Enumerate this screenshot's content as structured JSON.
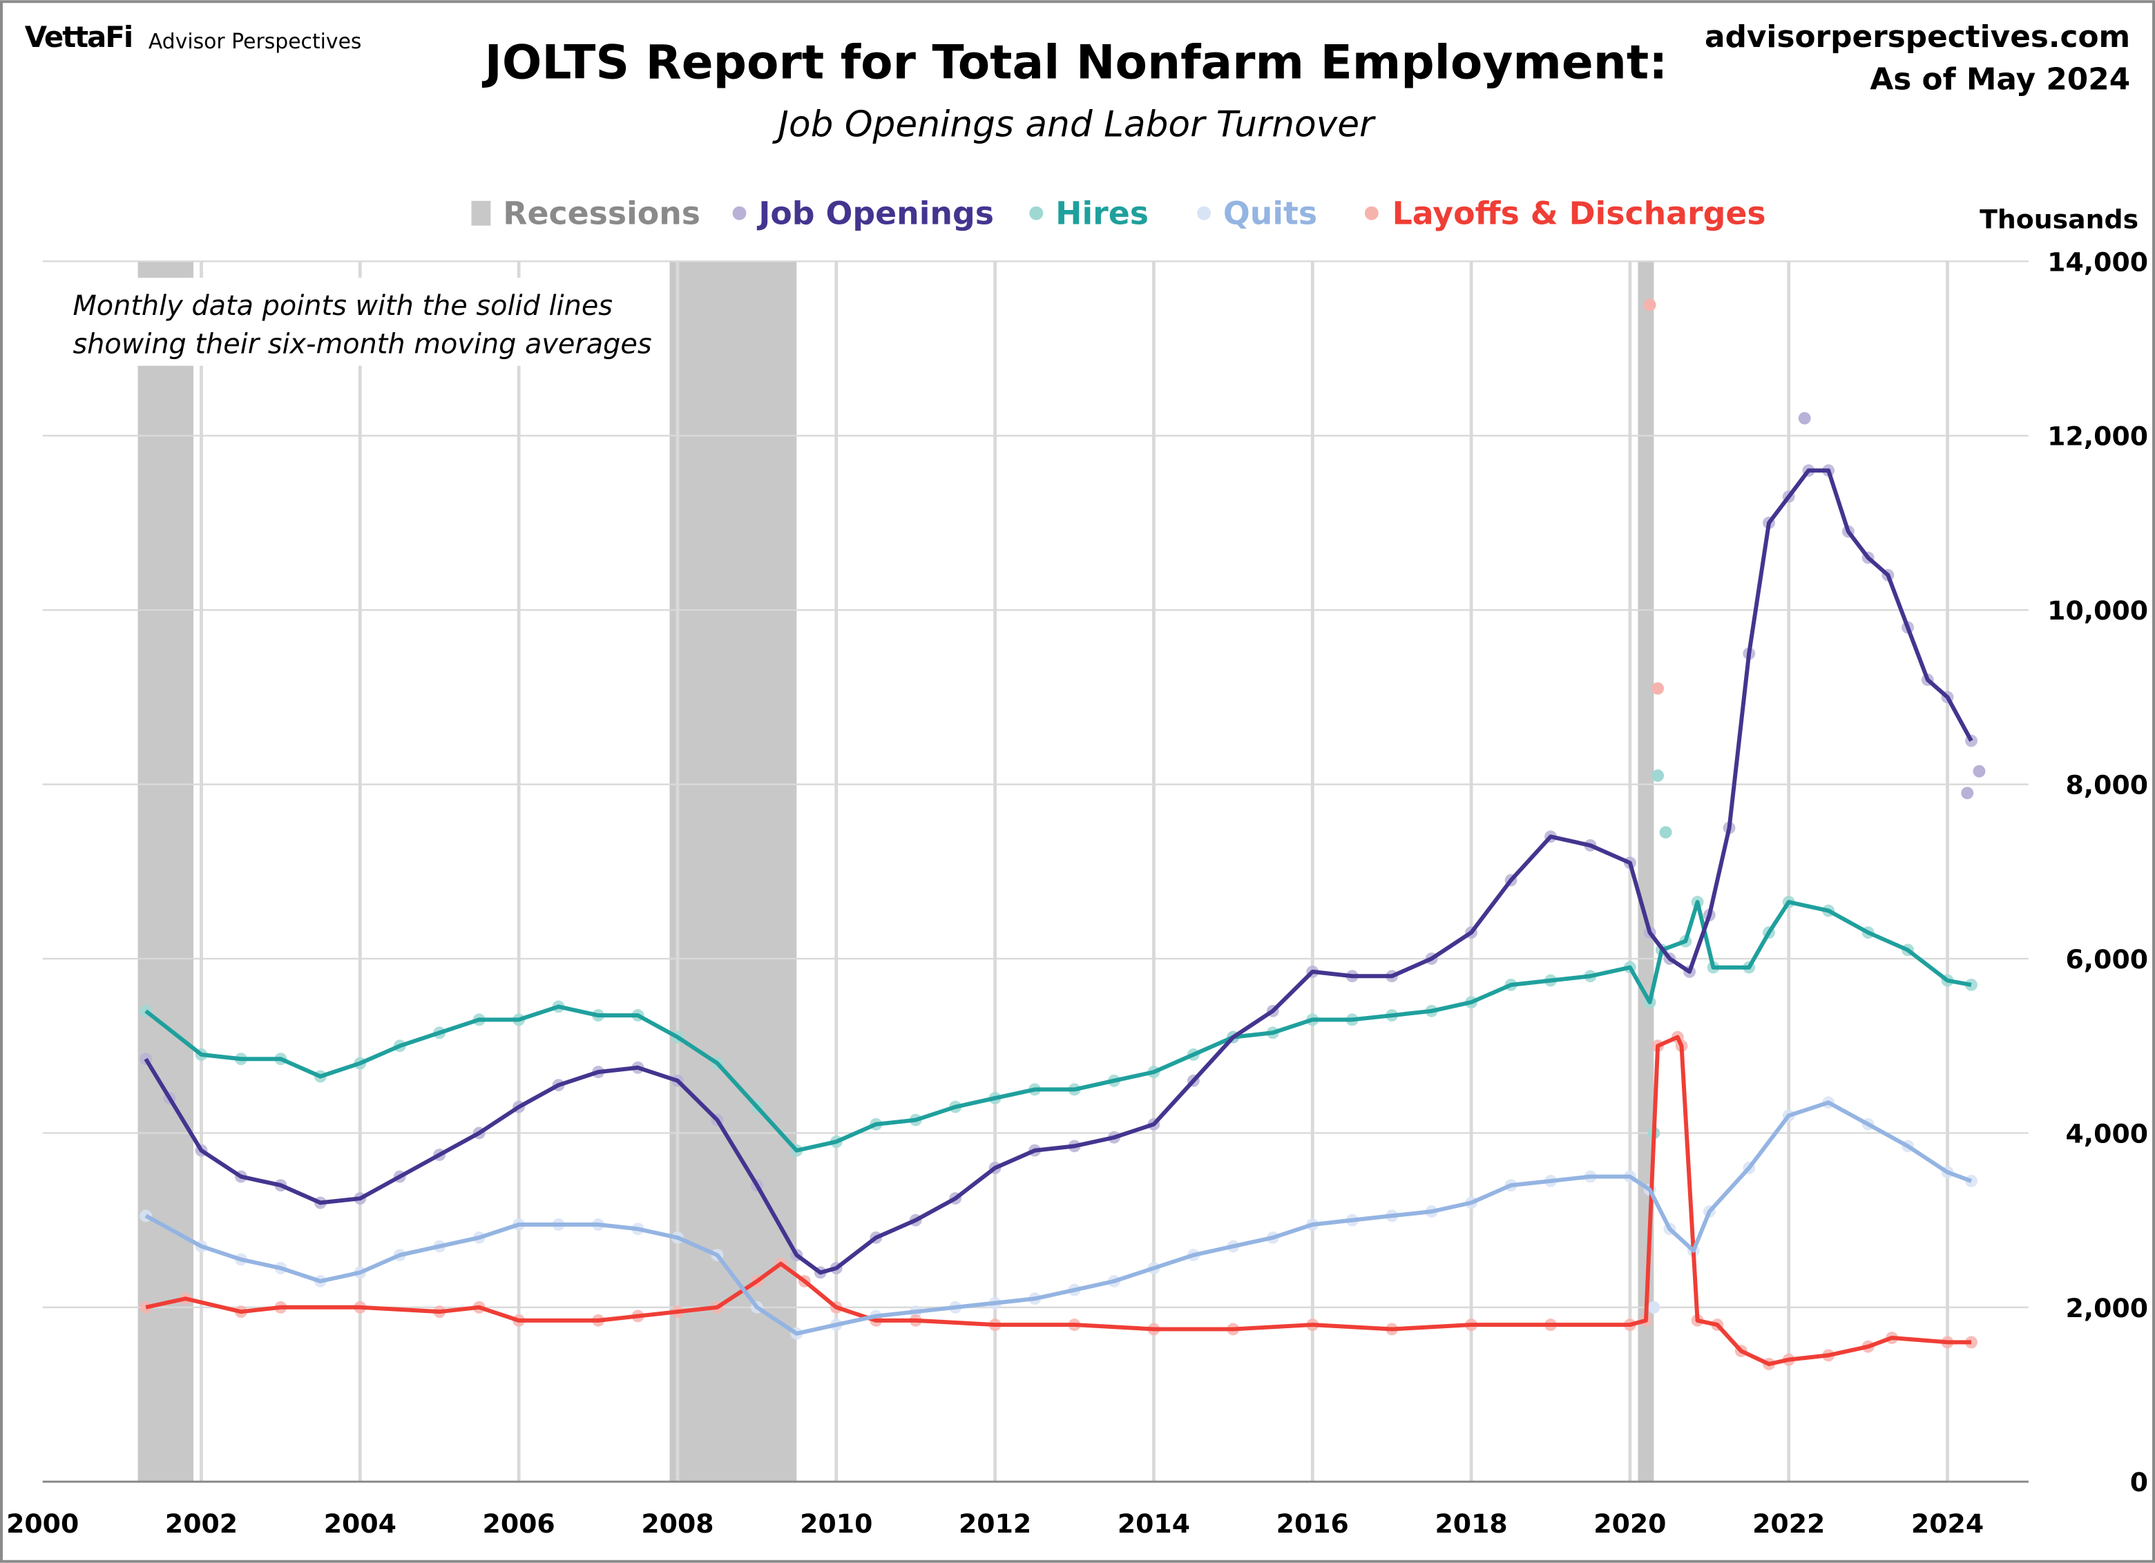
{
  "header": {
    "brand": "VettaFi",
    "brand_sub": "Advisor Perspectives",
    "site": "advisorperspectives.com",
    "as_of": "As of May 2024"
  },
  "chart_data": {
    "type": "line",
    "title": "JOLTS Report for Total Nonfarm Employment:",
    "subtitle": "Job Openings and Labor Turnover",
    "annotation": [
      "Monthly data points with the solid lines",
      "showing their six-month moving averages"
    ],
    "ylabel": "Thousands",
    "xlim": [
      2000,
      2025.1
    ],
    "ylim": [
      0,
      14000
    ],
    "x_ticks": [
      "2000",
      "2002",
      "2004",
      "2006",
      "2008",
      "2010",
      "2012",
      "2014",
      "2016",
      "2018",
      "2020",
      "2022",
      "2024"
    ],
    "y_ticks": [
      "0",
      "2,000",
      "4,000",
      "6,000",
      "8,000",
      "10,000",
      "12,000",
      "14,000"
    ],
    "grid": true,
    "legend_position": "top",
    "recessions": {
      "name": "Recessions",
      "color": "#c8c8c8",
      "periods": [
        [
          2001.2,
          2001.9
        ],
        [
          2007.9,
          2009.5
        ],
        [
          2020.1,
          2020.3
        ]
      ]
    },
    "series": [
      {
        "name": "Job Openings",
        "color": "#43358f",
        "dot_color": "#b9b1d6",
        "x": [
          2001.3,
          2001.6,
          2002.0,
          2002.5,
          2003.0,
          2003.5,
          2004.0,
          2004.5,
          2005.0,
          2005.5,
          2006.0,
          2006.5,
          2007.0,
          2007.5,
          2008.0,
          2008.5,
          2009.0,
          2009.5,
          2009.8,
          2010.0,
          2010.5,
          2011.0,
          2011.5,
          2012.0,
          2012.5,
          2013.0,
          2013.5,
          2014.0,
          2014.5,
          2015.0,
          2015.5,
          2016.0,
          2016.5,
          2017.0,
          2017.5,
          2018.0,
          2018.5,
          2019.0,
          2019.5,
          2020.0,
          2020.25,
          2020.5,
          2020.75,
          2021.0,
          2021.25,
          2021.5,
          2021.75,
          2022.0,
          2022.25,
          2022.5,
          2022.75,
          2023.0,
          2023.25,
          2023.5,
          2023.75,
          2024.0,
          2024.3
        ],
        "y": [
          4850,
          4400,
          3800,
          3500,
          3400,
          3200,
          3250,
          3500,
          3750,
          4000,
          4300,
          4550,
          4700,
          4750,
          4600,
          4150,
          3400,
          2600,
          2400,
          2450,
          2800,
          3000,
          3250,
          3600,
          3800,
          3850,
          3950,
          4100,
          4600,
          5100,
          5400,
          5850,
          5800,
          5800,
          6000,
          6300,
          6900,
          7400,
          7300,
          7100,
          6300,
          6000,
          5850,
          6500,
          7500,
          9500,
          11000,
          11300,
          11600,
          11600,
          10900,
          10600,
          10400,
          9800,
          9200,
          9000,
          8500
        ],
        "notable_points": [
          [
            2022.2,
            12200
          ],
          [
            2024.25,
            7900
          ],
          [
            2024.4,
            8150
          ]
        ]
      },
      {
        "name": "Hires",
        "color": "#1fa09d",
        "dot_color": "#9fd8d3",
        "x": [
          2001.3,
          2002.0,
          2002.5,
          2003.0,
          2003.5,
          2004.0,
          2004.5,
          2005.0,
          2005.5,
          2006.0,
          2006.5,
          2007.0,
          2007.5,
          2008.0,
          2008.5,
          2009.0,
          2009.5,
          2010.0,
          2010.5,
          2011.0,
          2011.5,
          2012.0,
          2012.5,
          2013.0,
          2013.5,
          2014.0,
          2014.5,
          2015.0,
          2015.5,
          2016.0,
          2016.5,
          2017.0,
          2017.5,
          2018.0,
          2018.5,
          2019.0,
          2019.5,
          2020.0,
          2020.25,
          2020.4,
          2020.7,
          2020.85,
          2021.05,
          2021.5,
          2021.75,
          2022.0,
          2022.5,
          2023.0,
          2023.5,
          2024.0,
          2024.3
        ],
        "y": [
          5400,
          4900,
          4850,
          4850,
          4650,
          4800,
          5000,
          5150,
          5300,
          5300,
          5450,
          5350,
          5350,
          5100,
          4800,
          4300,
          3800,
          3900,
          4100,
          4150,
          4300,
          4400,
          4500,
          4500,
          4600,
          4700,
          4900,
          5100,
          5150,
          5300,
          5300,
          5350,
          5400,
          5500,
          5700,
          5750,
          5800,
          5900,
          5500,
          6100,
          6200,
          6650,
          5900,
          5900,
          6300,
          6650,
          6550,
          6300,
          6100,
          5750,
          5700
        ],
        "notable_points": [
          [
            2020.35,
            8100
          ],
          [
            2020.45,
            7450
          ],
          [
            2020.3,
            4000
          ]
        ]
      },
      {
        "name": "Quits",
        "color": "#94b4e2",
        "dot_color": "#d8e3f5",
        "x": [
          2001.3,
          2002.0,
          2002.5,
          2003.0,
          2003.5,
          2004.0,
          2004.5,
          2005.0,
          2005.5,
          2006.0,
          2006.5,
          2007.0,
          2007.5,
          2008.0,
          2008.5,
          2009.0,
          2009.5,
          2010.0,
          2010.5,
          2011.0,
          2011.5,
          2012.0,
          2012.5,
          2013.0,
          2013.5,
          2014.0,
          2014.5,
          2015.0,
          2015.5,
          2016.0,
          2016.5,
          2017.0,
          2017.5,
          2018.0,
          2018.5,
          2019.0,
          2019.5,
          2020.0,
          2020.25,
          2020.5,
          2020.8,
          2021.0,
          2021.5,
          2022.0,
          2022.5,
          2023.0,
          2023.5,
          2024.0,
          2024.3
        ],
        "y": [
          3050,
          2700,
          2550,
          2450,
          2300,
          2400,
          2600,
          2700,
          2800,
          2950,
          2950,
          2950,
          2900,
          2800,
          2600,
          2000,
          1700,
          1800,
          1900,
          1950,
          2000,
          2050,
          2100,
          2200,
          2300,
          2450,
          2600,
          2700,
          2800,
          2950,
          3000,
          3050,
          3100,
          3200,
          3400,
          3450,
          3500,
          3500,
          3350,
          2900,
          2650,
          3100,
          3600,
          4200,
          4350,
          4100,
          3850,
          3550,
          3450
        ],
        "notable_points": [
          [
            2020.3,
            2000
          ]
        ]
      },
      {
        "name": "Layoffs & Discharges",
        "color": "#ef3e36",
        "dot_color": "#f6b3ae",
        "x": [
          2001.3,
          2001.8,
          2002.5,
          2003.0,
          2004.0,
          2005.0,
          2005.5,
          2006.0,
          2007.0,
          2007.5,
          2008.0,
          2008.5,
          2009.0,
          2009.3,
          2009.6,
          2010.0,
          2010.5,
          2011.0,
          2012.0,
          2013.0,
          2014.0,
          2015.0,
          2016.0,
          2017.0,
          2018.0,
          2019.0,
          2020.0,
          2020.2,
          2020.35,
          2020.6,
          2020.65,
          2020.85,
          2021.1,
          2021.4,
          2021.75,
          2022.0,
          2022.5,
          2023.0,
          2023.3,
          2024.0,
          2024.3
        ],
        "y": [
          2000,
          2100,
          1950,
          2000,
          2000,
          1950,
          2000,
          1850,
          1850,
          1900,
          1950,
          2000,
          2300,
          2500,
          2300,
          2000,
          1850,
          1850,
          1800,
          1800,
          1750,
          1750,
          1800,
          1750,
          1800,
          1800,
          1800,
          1850,
          5000,
          5100,
          5000,
          1850,
          1800,
          1500,
          1350,
          1400,
          1450,
          1550,
          1650,
          1600,
          1600
        ],
        "notable_points": [
          [
            2020.25,
            13500
          ],
          [
            2020.35,
            9100
          ]
        ]
      }
    ]
  }
}
